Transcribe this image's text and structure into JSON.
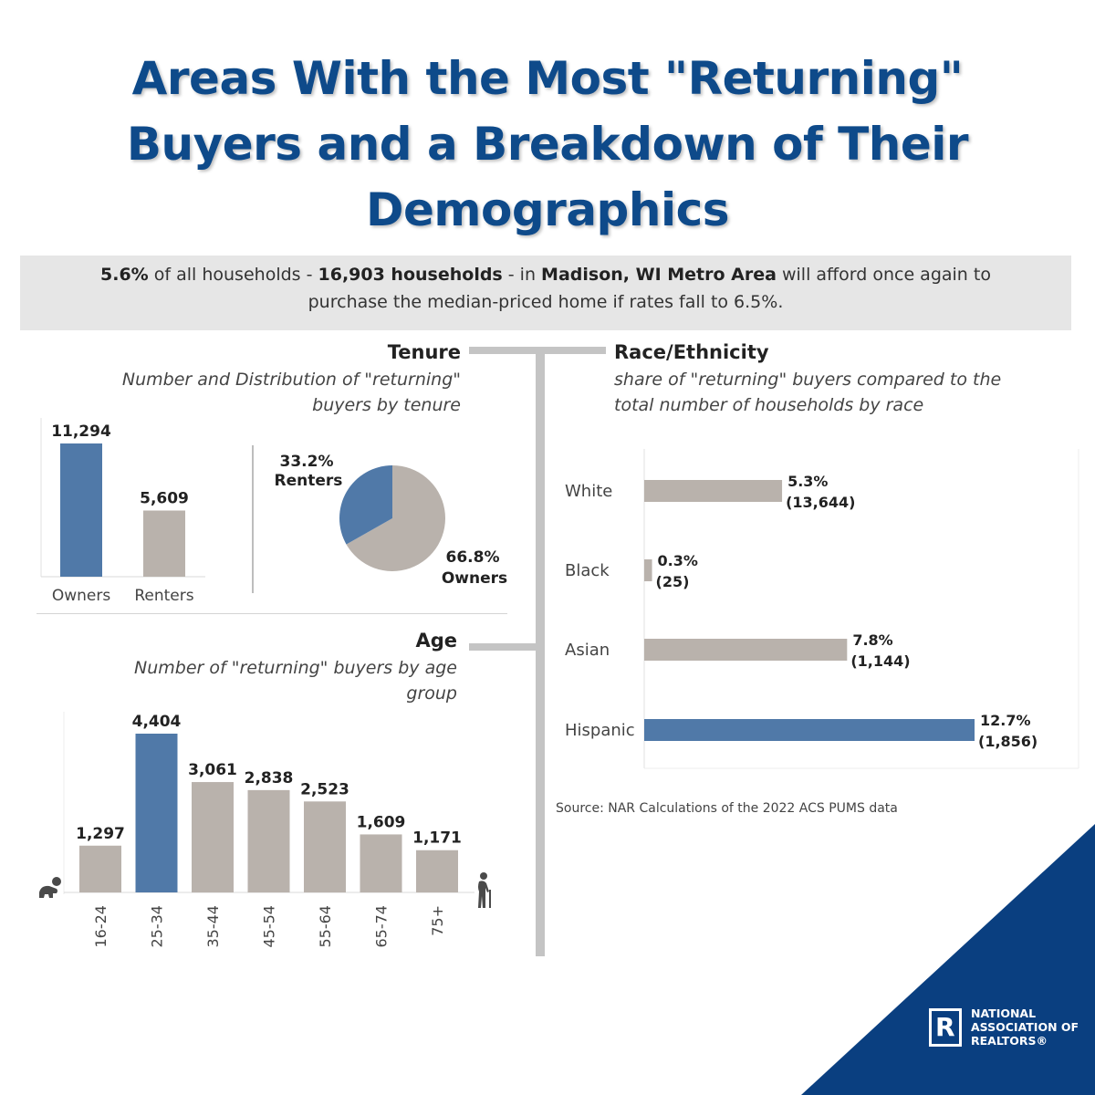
{
  "title": {
    "line1": "Areas With the Most \"Returning\"",
    "line2": "Buyers and a Breakdown of Their",
    "line3": "Demographics"
  },
  "banner": {
    "pct": "5.6%",
    "t1": " of all households - ",
    "households": "16,903 households",
    "t2": " - in ",
    "area": "Madison, WI Metro Area",
    "t3": " will afford once again to",
    "line2": "purchase the median-priced home if rates fall to 6.5%."
  },
  "tenure": {
    "title": "Tenure",
    "subtitle_line1": "Number and Distribution of \"returning\"",
    "subtitle_line2": "buyers by tenure"
  },
  "age": {
    "title": "Age",
    "subtitle_line1": "Number of \"returning\" buyers by age",
    "subtitle_line2": "group"
  },
  "race": {
    "title": "Race/Ethnicity",
    "subtitle_line1": "share of \"returning\" buyers compared to the",
    "subtitle_line2": "total number of households by race"
  },
  "source": "Source: NAR Calculations of the 2022 ACS PUMS data",
  "logo": {
    "mark": "R",
    "line1": "NATIONAL",
    "line2": "ASSOCIATION OF",
    "line3": "REALTORS®"
  },
  "colors": {
    "blue": "#5079a8",
    "gray": "#b9b2ac",
    "title_blue": "#0e4a8a",
    "nar_blue": "#0a3f80"
  },
  "icons": [
    "baby-crawling-icon",
    "elderly-person-cane-icon"
  ],
  "chart_data": [
    {
      "id": "tenure-bars",
      "type": "bar",
      "categories": [
        "Owners",
        "Renters"
      ],
      "values": [
        11294,
        5609
      ],
      "labels": [
        "11,294",
        "5,609"
      ],
      "highlight": "Owners"
    },
    {
      "id": "tenure-pie",
      "type": "pie",
      "slices": [
        {
          "label": "Renters",
          "value": 33.2,
          "pct_label": "33.2%"
        },
        {
          "label": "Owners",
          "value": 66.8,
          "pct_label": "66.8%"
        }
      ]
    },
    {
      "id": "age-bars",
      "type": "bar",
      "categories": [
        "16-24",
        "25-34",
        "35-44",
        "45-54",
        "55-64",
        "65-74",
        "75+"
      ],
      "values": [
        1297,
        4404,
        3061,
        2838,
        2523,
        1609,
        1171
      ],
      "labels": [
        "1,297",
        "4,404",
        "3,061",
        "2,838",
        "2,523",
        "1,609",
        "1,171"
      ],
      "highlight": "25-34"
    },
    {
      "id": "race-bars",
      "type": "bar",
      "orientation": "horizontal",
      "categories": [
        "White",
        "Black",
        "Asian",
        "Hispanic"
      ],
      "values": [
        5.3,
        0.3,
        7.8,
        12.7
      ],
      "pct_labels": [
        "5.3%",
        "0.3%",
        "7.8%",
        "12.7%"
      ],
      "count_labels": [
        "(13,644)",
        "(25)",
        "(1,144)",
        "(1,856)"
      ],
      "highlight": "Hispanic"
    }
  ]
}
